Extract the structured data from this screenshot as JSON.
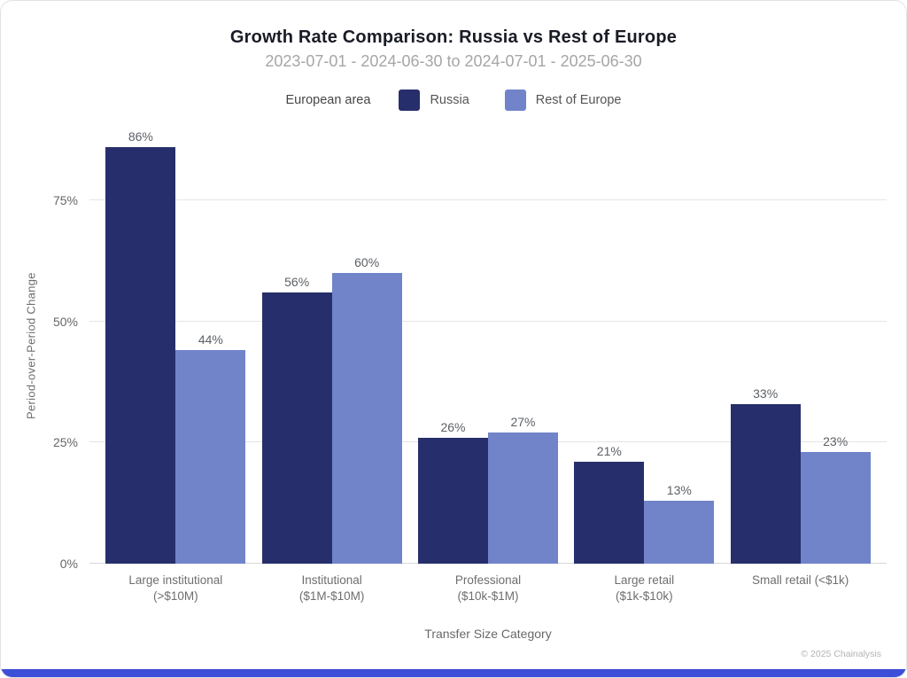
{
  "title": "Growth Rate Comparison: Russia vs Rest of Europe",
  "subtitle": "2023-07-01 - 2024-06-30 to 2024-07-01 - 2025-06-30",
  "legend": {
    "label": "European area"
  },
  "footer": {
    "copyright": "© 2025 Chainalysis"
  },
  "colors": {
    "russia": "#262f6b",
    "rest_of_europe": "#7183c9",
    "accent_bar": "#3d4fd7",
    "gridline": "#e5e5e5"
  },
  "chart_data": {
    "type": "bar",
    "title": "Growth Rate Comparison: Russia vs Rest of Europe",
    "subtitle": "2023-07-01 - 2024-06-30 to 2024-07-01 - 2025-06-30",
    "categories": [
      "Large institutional (>$10M)",
      "Institutional ($1M-$10M)",
      "Professional ($10k-$1M)",
      "Large retail ($1k-$10k)",
      "Small retail (<$1k)"
    ],
    "series": [
      {
        "name": "Russia",
        "color": "#262f6b",
        "values": [
          86,
          56,
          26,
          21,
          33
        ]
      },
      {
        "name": "Rest of Europe",
        "color": "#7183c9",
        "values": [
          44,
          60,
          27,
          13,
          23
        ]
      }
    ],
    "xlabel": "Transfer Size Category",
    "ylabel": "Period-over-Period Change",
    "yticks": [
      0,
      25,
      50,
      75
    ],
    "ylim": [
      0,
      90
    ],
    "value_suffix": "%",
    "grid": "horizontal",
    "legend_position": "top"
  }
}
